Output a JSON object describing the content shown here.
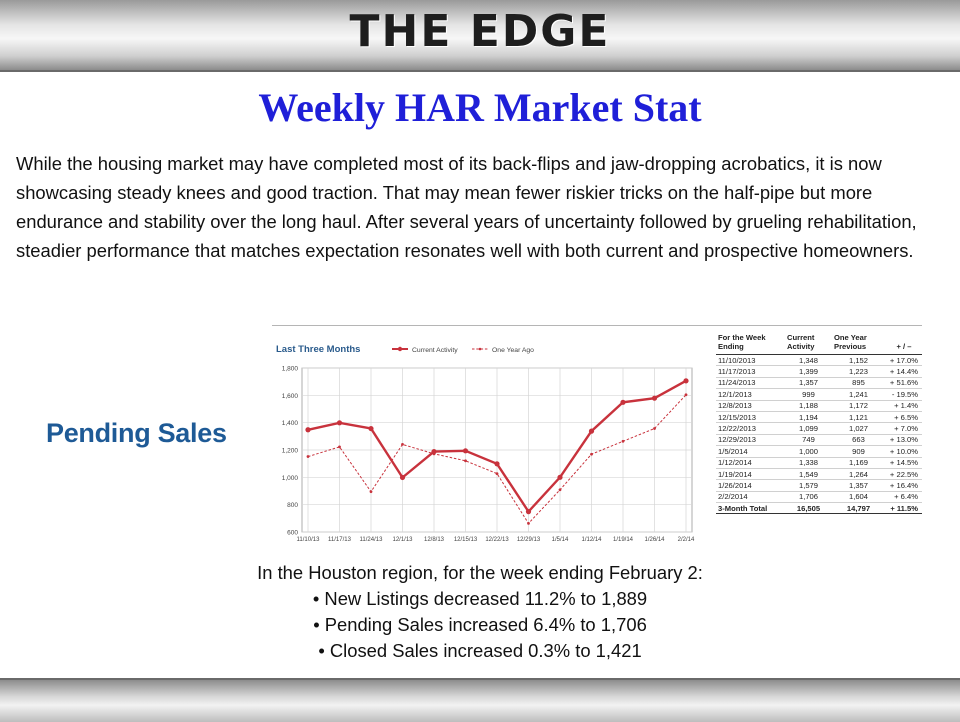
{
  "brand": "THE EDGE",
  "title": "Weekly HAR Market Stat",
  "intro": "While the housing market may have completed most of its back-flips and jaw-dropping acrobatics, it is now showcasing steady knees and good traction. That may mean fewer riskier tricks on the half-pipe but more endurance and stability over the long haul. After several years of uncertainty followed by grueling rehabilitation, steadier performance that matches expectation resonates well with both current and prospective homeowners.",
  "section_label": "Pending Sales",
  "colors": {
    "current": "#c8323c",
    "previous": "#c8323c",
    "title_blue": "#1f1fd8",
    "header_blue": "#1e5a96"
  },
  "chart_data": {
    "type": "line",
    "title": "Last Three Months",
    "categories": [
      "11/10/13",
      "11/17/13",
      "11/24/13",
      "12/1/13",
      "12/8/13",
      "12/15/13",
      "12/22/13",
      "12/29/13",
      "1/5/14",
      "1/12/14",
      "1/19/14",
      "1/26/14",
      "2/2/14"
    ],
    "series": [
      {
        "name": "Current Activity",
        "values": [
          1348,
          1399,
          1357,
          999,
          1188,
          1194,
          1099,
          749,
          1000,
          1338,
          1549,
          1579,
          1706
        ]
      },
      {
        "name": "One Year Ago",
        "values": [
          1152,
          1223,
          895,
          1241,
          1172,
          1121,
          1027,
          663,
          909,
          1169,
          1264,
          1357,
          1604
        ]
      }
    ],
    "ylim": [
      600,
      1800
    ],
    "yticks": [
      600,
      800,
      1000,
      1200,
      1400,
      1600,
      1800
    ],
    "ytick_labels": [
      "600",
      "800",
      "1,000",
      "1,200",
      "1,400",
      "1,600",
      "1,800"
    ],
    "legend": "top",
    "grid": true
  },
  "table": {
    "headers": [
      "For the Week Ending",
      "Current Activity",
      "One Year Previous",
      "+ / –"
    ],
    "rows": [
      [
        "11/10/2013",
        "1,348",
        "1,152",
        "+ 17.0%"
      ],
      [
        "11/17/2013",
        "1,399",
        "1,223",
        "+ 14.4%"
      ],
      [
        "11/24/2013",
        "1,357",
        "895",
        "+ 51.6%"
      ],
      [
        "12/1/2013",
        "999",
        "1,241",
        "- 19.5%"
      ],
      [
        "12/8/2013",
        "1,188",
        "1,172",
        "+ 1.4%"
      ],
      [
        "12/15/2013",
        "1,194",
        "1,121",
        "+ 6.5%"
      ],
      [
        "12/22/2013",
        "1,099",
        "1,027",
        "+ 7.0%"
      ],
      [
        "12/29/2013",
        "749",
        "663",
        "+ 13.0%"
      ],
      [
        "1/5/2014",
        "1,000",
        "909",
        "+ 10.0%"
      ],
      [
        "1/12/2014",
        "1,338",
        "1,169",
        "+ 14.5%"
      ],
      [
        "1/19/2014",
        "1,549",
        "1,264",
        "+ 22.5%"
      ],
      [
        "1/26/2014",
        "1,579",
        "1,357",
        "+ 16.4%"
      ],
      [
        "2/2/2014",
        "1,706",
        "1,604",
        "+ 6.4%"
      ]
    ],
    "total": [
      "3-Month Total",
      "16,505",
      "14,797",
      "+ 11.5%"
    ]
  },
  "summary": {
    "heading": "In the Houston region, for the week ending February 2:",
    "bullets": [
      "• New Listings decreased 11.2% to 1,889",
      "• Pending Sales increased 6.4% to 1,706",
      "• Closed Sales increased 0.3% to 1,421"
    ]
  }
}
